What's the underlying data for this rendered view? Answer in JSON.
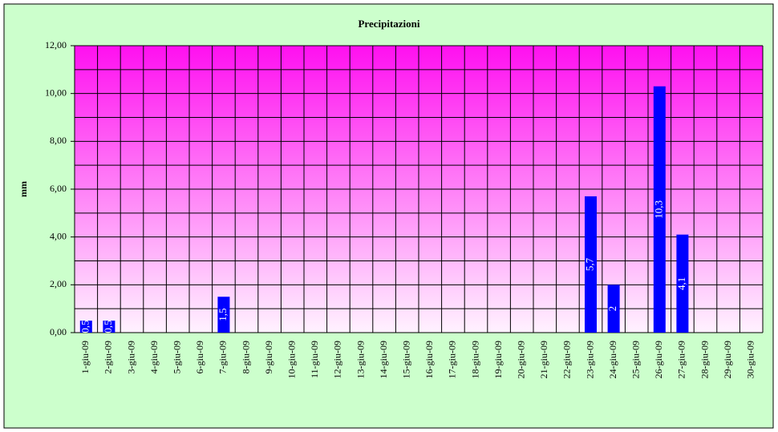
{
  "chart_data": {
    "type": "bar",
    "title": "Precipitazioni",
    "y_label": "mm",
    "categories": [
      "1-giu-09",
      "2-giu-09",
      "3-giu-09",
      "4-giu-09",
      "5-giu-09",
      "6-giu-09",
      "7-giu-09",
      "8-giu-09",
      "9-giu-09",
      "10-giu-09",
      "11-giu-09",
      "12-giu-09",
      "13-giu-09",
      "14-giu-09",
      "15-giu-09",
      "16-giu-09",
      "17-giu-09",
      "18-giu-09",
      "19-giu-09",
      "20-giu-09",
      "21-giu-09",
      "22-giu-09",
      "23-giu-09",
      "24-giu-09",
      "25-giu-09",
      "26-giu-09",
      "27-giu-09",
      "28-giu-09",
      "29-giu-09",
      "30-giu-09"
    ],
    "values": [
      0.5,
      0.5,
      null,
      null,
      null,
      null,
      1.5,
      null,
      null,
      null,
      null,
      null,
      null,
      null,
      null,
      null,
      null,
      null,
      null,
      null,
      null,
      null,
      5.7,
      2,
      null,
      10.3,
      4.1,
      null,
      null,
      null
    ],
    "value_labels": [
      "0,5",
      "0,5",
      null,
      null,
      null,
      null,
      "1,5",
      null,
      null,
      null,
      null,
      null,
      null,
      null,
      null,
      null,
      null,
      null,
      null,
      null,
      null,
      null,
      "5,7",
      "2",
      null,
      "10,3",
      "4,1",
      null,
      null,
      null
    ],
    "color": "#0000ff",
    "ylim": [
      0,
      12
    ],
    "yticks": [
      {
        "value": 0,
        "label": "0,00"
      },
      {
        "value": 2,
        "label": "2,00"
      },
      {
        "value": 4,
        "label": "4,00"
      },
      {
        "value": 6,
        "label": "6,00"
      },
      {
        "value": 8,
        "label": "8,00"
      },
      {
        "value": 10,
        "label": "10,00"
      },
      {
        "value": 12,
        "label": "12,00"
      }
    ],
    "y_minor_ticks": [
      1,
      3,
      5,
      7,
      9,
      11
    ],
    "grid": true
  }
}
